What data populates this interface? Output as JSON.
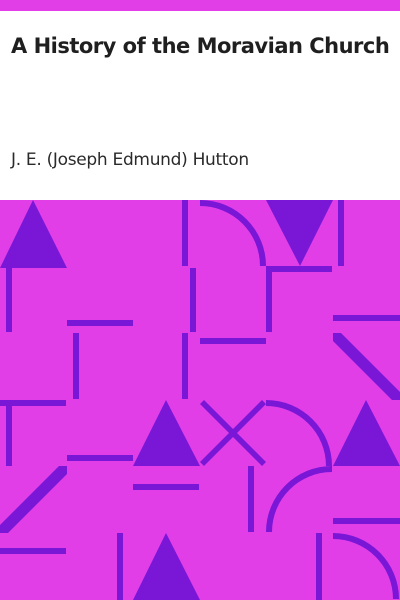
{
  "cover": {
    "title": "A History of the Moravian Church",
    "author": "J. E. (Joseph Edmund) Hutton"
  },
  "colors": {
    "background": "#e13ee8",
    "shapes": "#7a16d6",
    "text_panel": "#ffffff",
    "title_text": "#1f1f1f",
    "author_text": "#2a2a2a"
  }
}
